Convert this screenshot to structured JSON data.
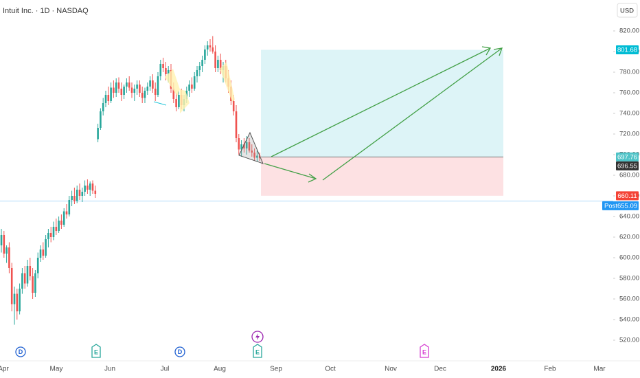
{
  "header": {
    "title": "Intuit Inc. · 1D · NASDAQ",
    "currency": "USD"
  },
  "chart_data": {
    "type": "candlestick",
    "values": [
      [
        612,
        628,
        605,
        622
      ],
      [
        622,
        626,
        600,
        604
      ],
      [
        604,
        612,
        595,
        610
      ],
      [
        610,
        615,
        585,
        590
      ],
      [
        590,
        595,
        548,
        555
      ],
      [
        555,
        572,
        535,
        565
      ],
      [
        565,
        570,
        540,
        548
      ],
      [
        548,
        575,
        545,
        570
      ],
      [
        570,
        590,
        565,
        585
      ],
      [
        585,
        592,
        570,
        575
      ],
      [
        575,
        598,
        572,
        592
      ],
      [
        592,
        600,
        578,
        582
      ],
      [
        582,
        590,
        560,
        566
      ],
      [
        566,
        588,
        562,
        585
      ],
      [
        585,
        605,
        580,
        600
      ],
      [
        600,
        612,
        596,
        608
      ],
      [
        608,
        615,
        598,
        602
      ],
      [
        602,
        622,
        600,
        618
      ],
      [
        618,
        628,
        610,
        624
      ],
      [
        624,
        630,
        615,
        620
      ],
      [
        620,
        635,
        617,
        630
      ],
      [
        630,
        638,
        622,
        626
      ],
      [
        626,
        640,
        624,
        636
      ],
      [
        636,
        642,
        628,
        632
      ],
      [
        632,
        648,
        630,
        645
      ],
      [
        645,
        652,
        638,
        642
      ],
      [
        642,
        660,
        640,
        656
      ],
      [
        656,
        665,
        650,
        660
      ],
      [
        660,
        668,
        652,
        655
      ],
      [
        655,
        670,
        653,
        666
      ],
      [
        666,
        672,
        656,
        660
      ],
      [
        660,
        668,
        654,
        664
      ],
      [
        664,
        675,
        660,
        670
      ],
      [
        670,
        676,
        662,
        666
      ],
      [
        666,
        674,
        660,
        672
      ],
      [
        672,
        675,
        662,
        665
      ],
      [
        665,
        670,
        658,
        662
      ],
      [
        715,
        730,
        712,
        726
      ],
      [
        726,
        745,
        724,
        742
      ],
      [
        742,
        755,
        738,
        750
      ],
      [
        750,
        762,
        746,
        758
      ],
      [
        758,
        766,
        748,
        752
      ],
      [
        752,
        770,
        750,
        765
      ],
      [
        765,
        772,
        755,
        760
      ],
      [
        760,
        774,
        756,
        770
      ],
      [
        770,
        775,
        760,
        764
      ],
      [
        764,
        770,
        752,
        758
      ],
      [
        758,
        768,
        754,
        766
      ],
      [
        766,
        774,
        760,
        770
      ],
      [
        770,
        776,
        762,
        765
      ],
      [
        765,
        770,
        755,
        760
      ],
      [
        760,
        768,
        752,
        764
      ],
      [
        764,
        772,
        758,
        768
      ],
      [
        768,
        772,
        756,
        760
      ],
      [
        760,
        766,
        750,
        755
      ],
      [
        755,
        765,
        750,
        762
      ],
      [
        762,
        770,
        758,
        766
      ],
      [
        766,
        776,
        762,
        772
      ],
      [
        772,
        778,
        760,
        764
      ],
      [
        764,
        770,
        752,
        758
      ],
      [
        758,
        780,
        756,
        776
      ],
      [
        776,
        792,
        772,
        788
      ],
      [
        788,
        794,
        780,
        784
      ],
      [
        784,
        790,
        772,
        778
      ],
      [
        778,
        786,
        770,
        782
      ],
      [
        782,
        788,
        760,
        764
      ],
      [
        764,
        770,
        750,
        754
      ],
      [
        754,
        760,
        742,
        746
      ],
      [
        746,
        762,
        744,
        758
      ],
      [
        758,
        764,
        744,
        748
      ],
      [
        748,
        758,
        742,
        754
      ],
      [
        754,
        766,
        750,
        762
      ],
      [
        762,
        772,
        756,
        768
      ],
      [
        768,
        775,
        760,
        764
      ],
      [
        764,
        780,
        762,
        776
      ],
      [
        776,
        786,
        770,
        782
      ],
      [
        782,
        790,
        776,
        786
      ],
      [
        786,
        796,
        780,
        792
      ],
      [
        792,
        806,
        788,
        802
      ],
      [
        802,
        810,
        796,
        806
      ],
      [
        806,
        812,
        800,
        804
      ],
      [
        804,
        815,
        798,
        800
      ],
      [
        800,
        806,
        780,
        784
      ],
      [
        784,
        796,
        780,
        792
      ],
      [
        792,
        798,
        778,
        782
      ],
      [
        782,
        790,
        770,
        786
      ],
      [
        786,
        792,
        770,
        774
      ],
      [
        774,
        782,
        760,
        766
      ],
      [
        766,
        772,
        748,
        752
      ],
      [
        752,
        758,
        738,
        742
      ],
      [
        742,
        748,
        712,
        716
      ],
      [
        716,
        720,
        700,
        705
      ],
      [
        705,
        714,
        698,
        710
      ],
      [
        710,
        716,
        702,
        706
      ],
      [
        706,
        718,
        700,
        712
      ],
      [
        712,
        716,
        702,
        704
      ],
      [
        704,
        710,
        698,
        702
      ],
      [
        702,
        706,
        694,
        697
      ],
      [
        697,
        704,
        693,
        699
      ],
      [
        699,
        702,
        694,
        696.55
      ]
    ],
    "up_color": "#26a69a",
    "down_color": "#ef5350",
    "ylim": [
      500,
      850
    ],
    "yticks": [
      {
        "value": 520,
        "label": "520.00"
      },
      {
        "value": 540,
        "label": "540.00"
      },
      {
        "value": 560,
        "label": "560.00"
      },
      {
        "value": 580,
        "label": "580.00"
      },
      {
        "value": 600,
        "label": "600.00"
      },
      {
        "value": 620,
        "label": "620.00"
      },
      {
        "value": 640,
        "label": "640.00"
      },
      {
        "value": 660,
        "label": "660.00"
      },
      {
        "value": 680,
        "label": "680.00"
      },
      {
        "value": 700,
        "label": "700.00"
      },
      {
        "value": 720,
        "label": "720.00"
      },
      {
        "value": 740,
        "label": "740.00"
      },
      {
        "value": 760,
        "label": "760.00"
      },
      {
        "value": 780,
        "label": "780.00"
      },
      {
        "value": 800,
        "label": "800.00"
      },
      {
        "value": 820,
        "label": "820.00"
      }
    ],
    "xtick_labels": [
      "Apr",
      "May",
      "Jun",
      "Jul",
      "Aug",
      "Sep",
      "Oct",
      "Nov",
      "Dec",
      "2026",
      "Feb",
      "Mar"
    ],
    "target": 801.68,
    "entry": 697.76,
    "stop": 660.11,
    "last": 696.55,
    "post_label": "Post",
    "post_price": 655.09,
    "events": [
      "D",
      "E",
      "D",
      "E",
      "E"
    ]
  }
}
